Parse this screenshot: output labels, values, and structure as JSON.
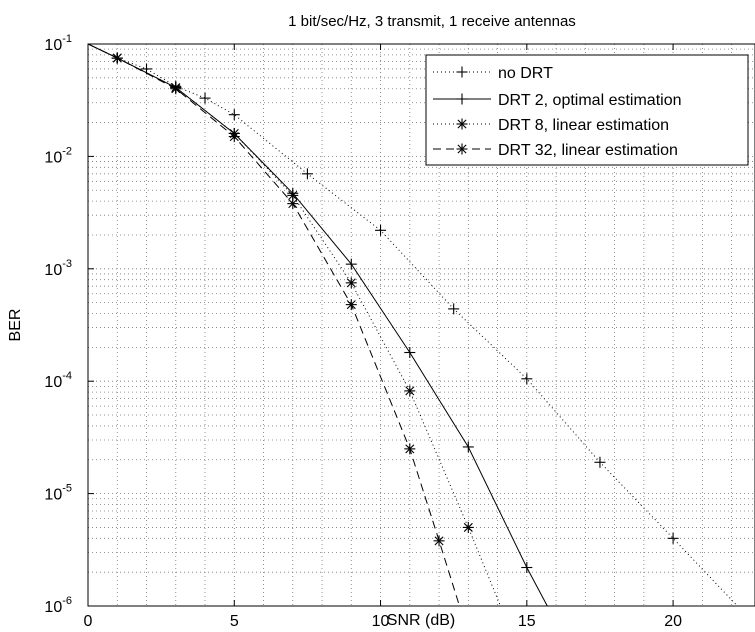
{
  "chart_data": {
    "type": "line",
    "title": "1 bit/sec/Hz, 3 transmit, 1 receive antennas",
    "xlabel": "SNR (dB)",
    "ylabel": "BER",
    "xlim": [
      0,
      22.8
    ],
    "ylim": [
      1e-06,
      0.1
    ],
    "yscale": "log",
    "grid": true,
    "legend_position": "top-right",
    "x_ticks": [
      "0",
      "5",
      "10",
      "15",
      "20"
    ],
    "y_ticks": [
      {
        "base": "10",
        "exp": "-1"
      },
      {
        "base": "10",
        "exp": "-2"
      },
      {
        "base": "10",
        "exp": "-3"
      },
      {
        "base": "10",
        "exp": "-4"
      },
      {
        "base": "10",
        "exp": "-5"
      },
      {
        "base": "10",
        "exp": "-6"
      }
    ],
    "series": [
      {
        "name": "no DRT",
        "line": "dotted",
        "marker": "+",
        "x": [
          0,
          1,
          2,
          3,
          4,
          5,
          7.5,
          10,
          12.5,
          15,
          17.5,
          20,
          22.2
        ],
        "y": [
          0.1,
          0.075,
          0.06,
          0.042,
          0.033,
          0.0235,
          0.007,
          0.0022,
          0.00044,
          0.000105,
          1.9e-05,
          4e-06,
          1e-06
        ],
        "marker_x": [
          1,
          2,
          3,
          4,
          5,
          7.5,
          10,
          12.5,
          15,
          17.5,
          20
        ],
        "marker_y": [
          0.075,
          0.06,
          0.042,
          0.033,
          0.0235,
          0.007,
          0.0022,
          0.00044,
          0.000105,
          1.9e-05,
          4e-06
        ]
      },
      {
        "name": "DRT 2, optimal estimation",
        "line": "solid",
        "marker": "+",
        "x": [
          0,
          1,
          3,
          5,
          7,
          9,
          11,
          13,
          15,
          15.7
        ],
        "y": [
          0.1,
          0.075,
          0.041,
          0.016,
          0.0047,
          0.0011,
          0.00018,
          2.6e-05,
          2.2e-06,
          1e-06
        ],
        "marker_x": [
          1,
          3,
          5,
          7,
          9,
          11,
          13,
          15
        ],
        "marker_y": [
          0.075,
          0.041,
          0.016,
          0.0047,
          0.0011,
          0.00018,
          2.6e-05,
          2.2e-06
        ]
      },
      {
        "name": "DRT 8, linear estimation",
        "line": "dotted",
        "marker": "*",
        "x": [
          0,
          1,
          3,
          5,
          7,
          9,
          11,
          13,
          14.1
        ],
        "y": [
          0.1,
          0.075,
          0.041,
          0.016,
          0.0045,
          0.00075,
          8.2e-05,
          5e-06,
          1e-06
        ],
        "marker_x": [
          1,
          3,
          5,
          7,
          9,
          11,
          13
        ],
        "marker_y": [
          0.075,
          0.041,
          0.016,
          0.0045,
          0.00075,
          8.2e-05,
          5e-06
        ]
      },
      {
        "name": "DRT 32, linear estimation",
        "line": "dashed",
        "marker": "*",
        "x": [
          0,
          1,
          3,
          5,
          7,
          9,
          11,
          12,
          12.7
        ],
        "y": [
          0.1,
          0.075,
          0.04,
          0.015,
          0.0038,
          0.00048,
          2.5e-05,
          3.8e-06,
          1e-06
        ],
        "marker_x": [
          1,
          3,
          5,
          7,
          9,
          11,
          12
        ],
        "marker_y": [
          0.075,
          0.04,
          0.015,
          0.0038,
          0.00048,
          2.5e-05,
          3.8e-06
        ]
      }
    ]
  }
}
